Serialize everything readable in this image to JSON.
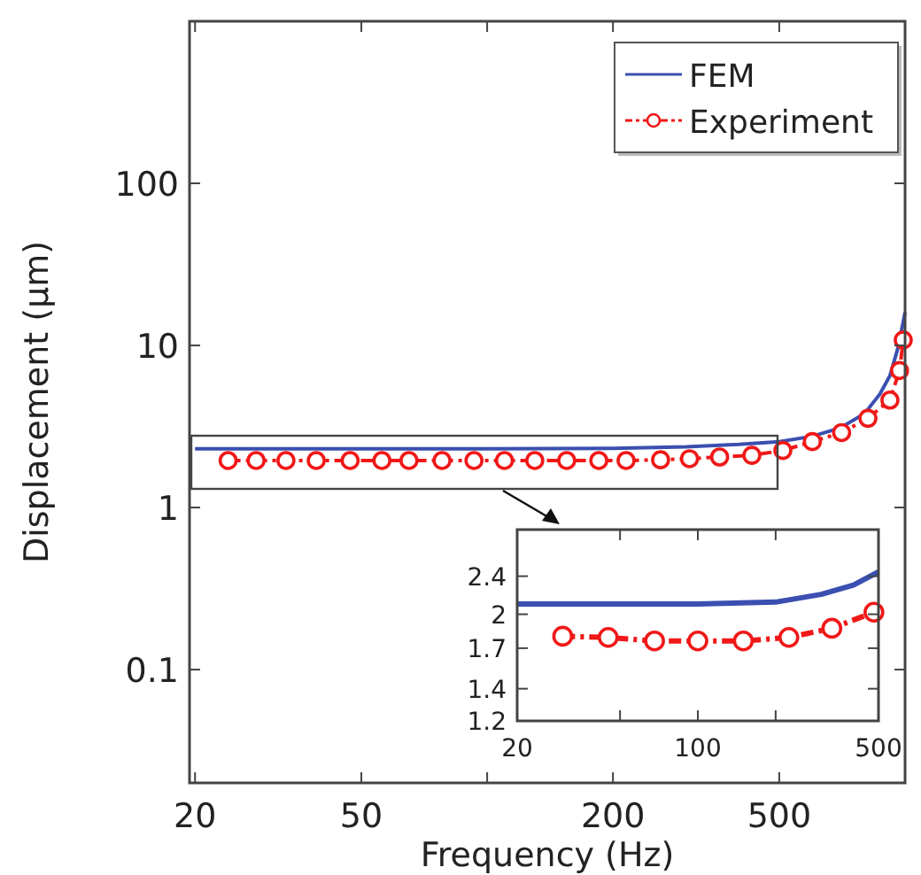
{
  "chart_data": [
    {
      "type": "line",
      "xlabel": "Frequency (Hz)",
      "ylabel": "Displacement (μm)",
      "log": "xy",
      "xlim": [
        19.4,
        1000
      ],
      "ylim": [
        0.02,
        1000
      ],
      "xticks": [
        20,
        50,
        {
          "value": 100,
          "label": null
        },
        200,
        500,
        {
          "value": 1000,
          "label": null
        }
      ],
      "yticks": [
        0.1,
        1,
        10,
        100
      ],
      "legend": "top right",
      "grid": false,
      "series": [
        {
          "name": "FEM",
          "color": "#3a4fb0",
          "marker": "none",
          "line_style": "solid",
          "x": [
            20,
            50,
            100,
            200,
            300,
            400,
            500,
            600,
            700,
            800,
            870,
            920,
            960,
            990,
            1000
          ],
          "values": [
            2.3,
            2.3,
            2.3,
            2.32,
            2.37,
            2.45,
            2.55,
            2.75,
            3.1,
            3.8,
            5,
            6.5,
            9.5,
            14,
            16
          ]
        },
        {
          "name": "Experiment",
          "color": "#f01818",
          "marker": "circle",
          "line_style": "dashed",
          "x": [
            24,
            28,
            33,
            39,
            47,
            56,
            65,
            78,
            93,
            110,
            130,
            155,
            185,
            215,
            260,
            305,
            360,
            430,
            510,
            600,
            705,
            815,
            920,
            970,
            990
          ],
          "values": [
            1.95,
            1.95,
            1.95,
            1.95,
            1.95,
            1.95,
            1.95,
            1.95,
            1.95,
            1.95,
            1.95,
            1.95,
            1.95,
            1.95,
            1.97,
            2,
            2.05,
            2.1,
            2.25,
            2.55,
            2.9,
            3.55,
            4.6,
            7,
            10.8
          ]
        }
      ]
    },
    {
      "type": "line",
      "log": "xy",
      "xlim": [
        20,
        500
      ],
      "ylim": [
        1.2,
        3
      ],
      "xticks": [
        20,
        {
          "value": 50,
          "label": null
        },
        100,
        {
          "value": 200,
          "label": null
        },
        500
      ],
      "yticks": [
        1.2,
        1.4,
        1.7,
        2,
        2.4
      ],
      "legend": false,
      "grid": false,
      "series": [
        {
          "color": "#3a4fb0",
          "marker": "none",
          "line_style": "solid",
          "x": [
            20,
            50,
            100,
            200,
            300,
            400,
            500
          ],
          "values": [
            2.1,
            2.1,
            2.1,
            2.12,
            2.2,
            2.3,
            2.45
          ]
        },
        {
          "color": "#f01818",
          "marker": "circle",
          "line_style": "dashed",
          "x": [
            30,
            45,
            68,
            100,
            150,
            225,
            330,
            480
          ],
          "values": [
            1.8,
            1.79,
            1.76,
            1.76,
            1.76,
            1.79,
            1.87,
            2.02
          ]
        }
      ]
    }
  ]
}
